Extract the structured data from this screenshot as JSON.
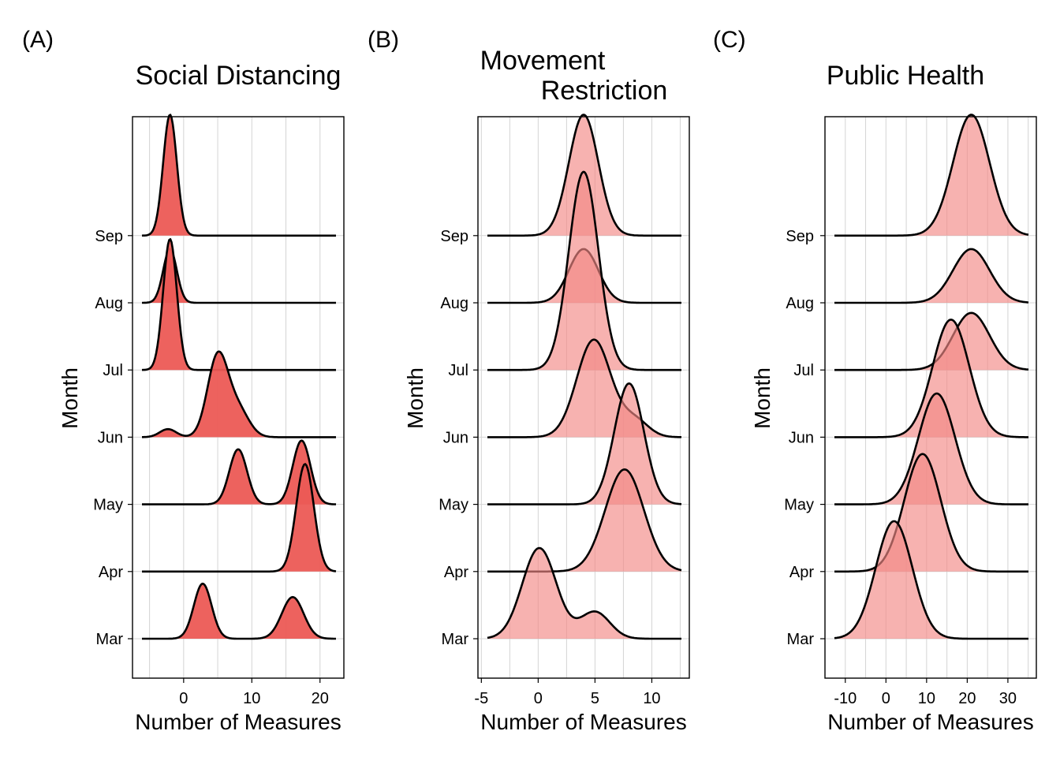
{
  "figure": {
    "colors": {
      "panel_a_fill": "#ec5a55",
      "panel_a_opacity": 0.95,
      "panel_bc_fill": "#f28886",
      "panel_bc_opacity": 0.65,
      "line": "#000000"
    }
  },
  "chart_data": [
    {
      "type": "area",
      "chart_kind": "ridgeline density",
      "panel": "(A)",
      "title": "Social Distancing",
      "title_lines": [
        "Social Distancing"
      ],
      "xlabel": "Number of Measures",
      "ylabel": "Month",
      "xlim": [
        -7.5,
        23.5
      ],
      "xticks": [
        0,
        10,
        20
      ],
      "xtick_labels": [
        "0",
        "10",
        "20"
      ],
      "grid": "vertical",
      "categories": [
        "Mar",
        "Apr",
        "May",
        "Jun",
        "Jul",
        "Aug",
        "Sep"
      ],
      "series": [
        {
          "name": "Mar",
          "peaks": [
            {
              "center": 2.8,
              "sd": 1.3,
              "height": 0.82
            },
            {
              "center": 16,
              "sd": 1.6,
              "height": 0.62
            }
          ]
        },
        {
          "name": "Apr",
          "peaks": [
            {
              "center": 17.8,
              "sd": 1.3,
              "height": 1.6
            }
          ]
        },
        {
          "name": "May",
          "peaks": [
            {
              "center": 8,
              "sd": 1.3,
              "height": 0.82
            },
            {
              "center": 17.3,
              "sd": 1.3,
              "height": 0.95
            }
          ]
        },
        {
          "name": "Jun",
          "peaks": [
            {
              "center": -2.3,
              "sd": 1.2,
              "height": 0.12
            },
            {
              "center": 5,
              "sd": 1.5,
              "height": 1.2
            },
            {
              "center": 8,
              "sd": 1.6,
              "height": 0.4
            }
          ]
        },
        {
          "name": "Jul",
          "peaks": [
            {
              "center": -2,
              "sd": 1.0,
              "height": 1.95
            }
          ]
        },
        {
          "name": "Aug",
          "peaks": [
            {
              "center": -2,
              "sd": 1.0,
              "height": 0.8
            }
          ]
        },
        {
          "name": "Sep",
          "peaks": [
            {
              "center": -2,
              "sd": 1.0,
              "height": 1.8
            }
          ]
        }
      ]
    },
    {
      "type": "area",
      "chart_kind": "ridgeline density",
      "panel": "(B)",
      "title": "Movement Restriction",
      "title_lines": [
        "Movement",
        "Restriction"
      ],
      "xlabel": "Number of Measures",
      "ylabel": "Month",
      "xlim": [
        -5.3,
        13.3
      ],
      "xticks": [
        -5,
        0,
        5,
        10
      ],
      "xtick_labels": [
        "-5",
        "0",
        "5",
        "10"
      ],
      "grid": "vertical",
      "categories": [
        "Mar",
        "Apr",
        "May",
        "Jun",
        "Jul",
        "Aug",
        "Sep"
      ],
      "series": [
        {
          "name": "Mar",
          "peaks": [
            {
              "center": 0.1,
              "sd": 1.5,
              "height": 1.35
            },
            {
              "center": 5,
              "sd": 1.3,
              "height": 0.4
            }
          ]
        },
        {
          "name": "Apr",
          "peaks": [
            {
              "center": 7.6,
              "sd": 1.7,
              "height": 1.52
            }
          ]
        },
        {
          "name": "May",
          "peaks": [
            {
              "center": 8,
              "sd": 1.3,
              "height": 1.8
            }
          ]
        },
        {
          "name": "Jun",
          "peaks": [
            {
              "center": 4.9,
              "sd": 1.5,
              "height": 1.45
            },
            {
              "center": 8.5,
              "sd": 1.2,
              "height": 0.25
            }
          ]
        },
        {
          "name": "Jul",
          "peaks": [
            {
              "center": 4,
              "sd": 1.3,
              "height": 2.95
            }
          ]
        },
        {
          "name": "Aug",
          "peaks": [
            {
              "center": 4,
              "sd": 1.3,
              "height": 0.8
            }
          ]
        },
        {
          "name": "Sep",
          "peaks": [
            {
              "center": 4,
              "sd": 1.3,
              "height": 1.8
            }
          ]
        }
      ]
    },
    {
      "type": "area",
      "chart_kind": "ridgeline density",
      "panel": "(C)",
      "title": "Public Health",
      "title_lines": [
        "Public Health"
      ],
      "xlabel": "Number of Measures",
      "ylabel": "Month",
      "xlim": [
        -15,
        37
      ],
      "xticks": [
        -10,
        0,
        10,
        20,
        30
      ],
      "xtick_labels": [
        "-10",
        "0",
        "10",
        "20",
        "30"
      ],
      "grid": "vertical",
      "categories": [
        "Mar",
        "Apr",
        "May",
        "Jun",
        "Jul",
        "Aug",
        "Sep"
      ],
      "series": [
        {
          "name": "Mar",
          "peaks": [
            {
              "center": 2,
              "sd": 4.5,
              "height": 1.75
            }
          ]
        },
        {
          "name": "Apr",
          "peaks": [
            {
              "center": 9,
              "sd": 4.5,
              "height": 1.75
            }
          ]
        },
        {
          "name": "May",
          "peaks": [
            {
              "center": 12.5,
              "sd": 4.5,
              "height": 1.65
            }
          ]
        },
        {
          "name": "Jun",
          "peaks": [
            {
              "center": 16,
              "sd": 4.5,
              "height": 1.75
            }
          ]
        },
        {
          "name": "Jul",
          "peaks": [
            {
              "center": 21,
              "sd": 4.5,
              "height": 0.85
            }
          ]
        },
        {
          "name": "Aug",
          "peaks": [
            {
              "center": 21,
              "sd": 4.5,
              "height": 0.8
            }
          ]
        },
        {
          "name": "Sep",
          "peaks": [
            {
              "center": 21,
              "sd": 4.5,
              "height": 1.8
            }
          ]
        }
      ]
    }
  ]
}
